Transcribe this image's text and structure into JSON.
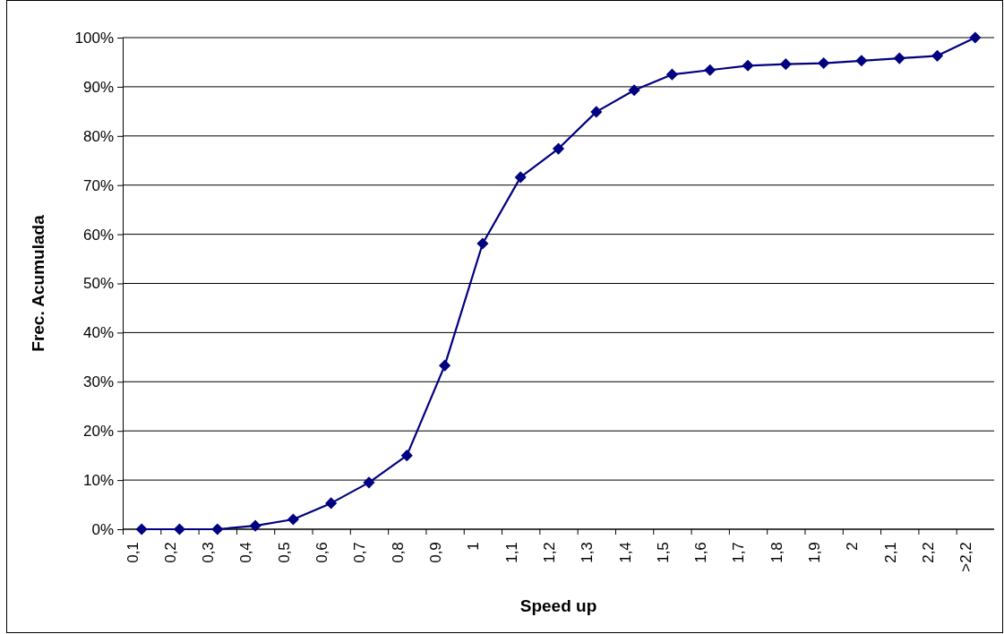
{
  "chart_data": {
    "type": "line",
    "xlabel": "Speed up",
    "ylabel": "Frec. Acumulada",
    "categories": [
      "0,1",
      "0,2",
      "0,3",
      "0,4",
      "0,5",
      "0,6",
      "0,7",
      "0,8",
      "0,9",
      "1",
      "1,1",
      "1,2",
      "1,3",
      "1,4",
      "1,5",
      "1,6",
      "1,7",
      "1,8",
      "1,9",
      "2",
      "2,1",
      "2,2",
      ">2,2"
    ],
    "series": [
      {
        "color": "#000080",
        "values": [
          0,
          0,
          0,
          0.7,
          2,
          5.3,
          9.5,
          15,
          33.3,
          58.1,
          71.6,
          77.4,
          84.9,
          89.3,
          92.5,
          93.4,
          94.3,
          94.6,
          94.8,
          95.3,
          95.8,
          96.3,
          100
        ]
      }
    ],
    "ylim": [
      0,
      100
    ],
    "yticks": [
      {
        "value": 0,
        "label": "0%"
      },
      {
        "value": 10,
        "label": "10%"
      },
      {
        "value": 20,
        "label": "20%"
      },
      {
        "value": 30,
        "label": "30%"
      },
      {
        "value": 40,
        "label": "40%"
      },
      {
        "value": 50,
        "label": "50%"
      },
      {
        "value": 60,
        "label": "60%"
      },
      {
        "value": 70,
        "label": "70%"
      },
      {
        "value": 80,
        "label": "80%"
      },
      {
        "value": 90,
        "label": "90%"
      },
      {
        "value": 100,
        "label": "100%"
      }
    ],
    "grid": "y",
    "marker": "diamond",
    "line_style": "solid"
  }
}
